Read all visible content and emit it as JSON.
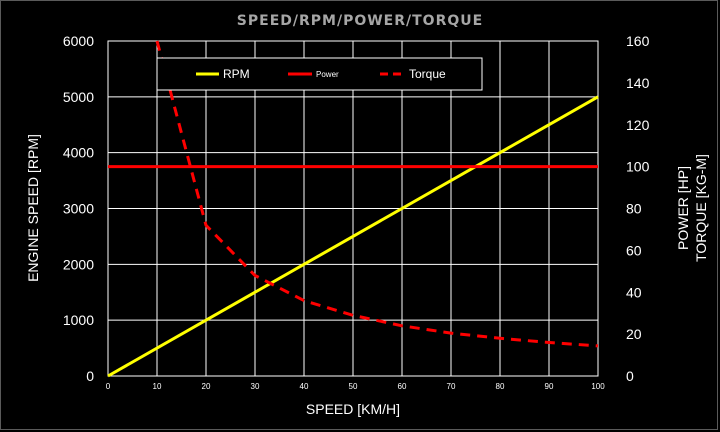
{
  "chart_data": {
    "type": "line",
    "title": "SPEED/RPM/POWER/TORQUE",
    "xlabel": "SPEED [KM/H]",
    "ylabel_left": "ENGINE SPEED [RPM]",
    "ylabel_right": [
      "POWER [HP]",
      "TORQUE [KG-M]"
    ],
    "xlim": [
      0,
      100
    ],
    "ylim_left": [
      0,
      6000
    ],
    "ylim_right": [
      0,
      160
    ],
    "x_ticks": [
      0,
      10,
      20,
      30,
      40,
      50,
      60,
      70,
      80,
      90,
      100
    ],
    "y_left_ticks": [
      0,
      1000,
      2000,
      3000,
      4000,
      5000,
      6000
    ],
    "y_right_ticks": [
      0,
      20,
      40,
      60,
      80,
      100,
      120,
      140,
      160
    ],
    "grid": true,
    "legend_placement": "top-left",
    "series": [
      {
        "name": "RPM",
        "axis": "left",
        "color": "#ffff00",
        "style": "solid",
        "x": [
          0,
          100
        ],
        "y": [
          0,
          5000
        ]
      },
      {
        "name": "Power",
        "axis": "right",
        "color": "#ff0000",
        "style": "solid",
        "x": [
          0,
          100
        ],
        "y": [
          100,
          100
        ]
      },
      {
        "name": "Torque",
        "axis": "right",
        "color": "#ff0000",
        "style": "dashed",
        "x": [
          10,
          20,
          30,
          40,
          50,
          60,
          70,
          80,
          90,
          100
        ],
        "y": [
          160,
          72,
          48,
          36,
          29,
          24,
          20.5,
          18,
          16,
          14.4
        ]
      }
    ]
  }
}
